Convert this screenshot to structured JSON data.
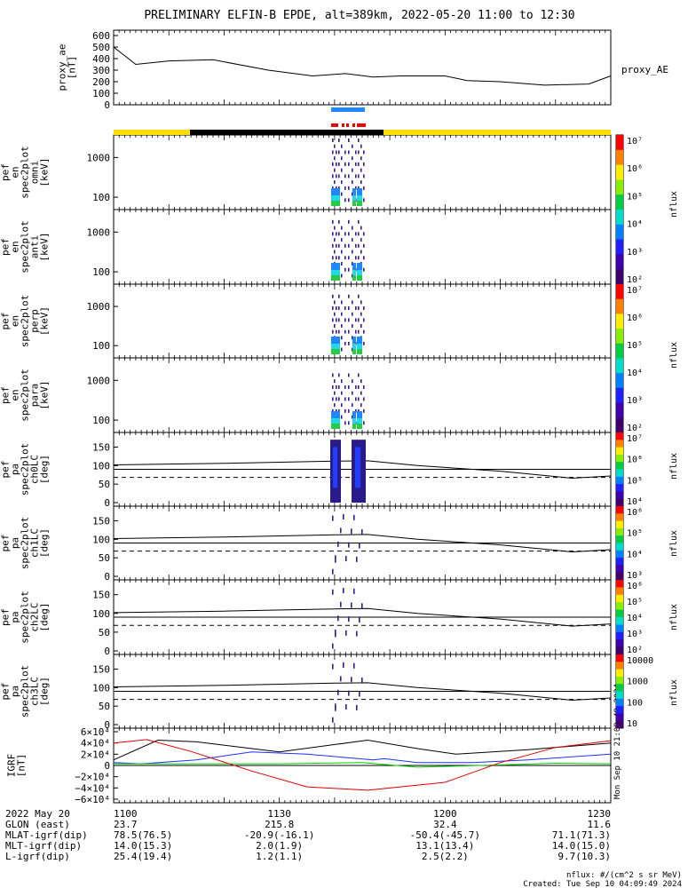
{
  "title": "PRELIMINARY ELFIN-B EPDE, alt=389km, 2022-05-20 11:00 to 12:30",
  "colors": {
    "state_yellow": "#ffdd00",
    "state_black": "#000000",
    "science_blue": "#1f88ff",
    "science_red": "#ee0000",
    "igrf_x": "#000000",
    "igrf_y": "#1f2fff",
    "igrf_z": "#00cc00",
    "igrf_red": "#dd0000"
  },
  "panels": [
    {
      "id": "proxy_ae",
      "ylabel": "proxy_ae\n[nT]",
      "right_label": "proxy_AE"
    },
    {
      "id": "omni",
      "ylabel": "elb\npef\nen\nspec2plot\nomni\n[keV]",
      "cbar_label": "nflux"
    },
    {
      "id": "anti",
      "ylabel": "elb\npef\nen\nspec2plot\nanti\n[keV]",
      "cbar_label": "nflux"
    },
    {
      "id": "perp",
      "ylabel": "elb\npef\nen\nspec2plot\nperp\n[keV]",
      "cbar_label": "nflux"
    },
    {
      "id": "para",
      "ylabel": "elb\npef\nen\nspec2plot\npara\n[keV]",
      "cbar_label": "nflux"
    },
    {
      "id": "ch0LC",
      "ylabel": "elb\npef\npa\nspec2plot\nch0LC\n[deg]",
      "cbar_label": "nflux"
    },
    {
      "id": "ch1LC",
      "ylabel": "elb\npef\npa\nspec2plot\nch1LC\n[deg]",
      "cbar_label": "nflux"
    },
    {
      "id": "ch2LC",
      "ylabel": "elb\npef\npa\nspec2plot\nch2LC\n[deg]",
      "cbar_label": "nflux"
    },
    {
      "id": "ch3LC",
      "ylabel": "elb\npef\npa\nspec2plot\nch3LC\n[deg]",
      "cbar_label": "nflux"
    },
    {
      "id": "igrf",
      "ylabel": "IGRF\n[nT]"
    }
  ],
  "chart_data": {
    "type": "line",
    "x_range": [
      "11:00",
      "12:30"
    ],
    "proxy_ae": {
      "ylim": [
        0,
        600
      ],
      "yticks": [
        "600",
        "500",
        "400",
        "300",
        "200",
        "100",
        "0"
      ],
      "x_min": [
        0,
        4,
        10,
        18,
        28,
        36,
        42,
        47,
        52,
        60,
        64,
        70,
        78,
        86,
        90
      ],
      "values": [
        500,
        350,
        380,
        390,
        300,
        250,
        270,
        240,
        250,
        250,
        210,
        200,
        170,
        180,
        250
      ]
    },
    "energy_ticks": [
      "1000",
      "100"
    ],
    "pitch_ticks": [
      "150",
      "100",
      "50",
      "0"
    ],
    "igrf_ticks": [
      "6×10⁴",
      "4×10⁴",
      "2×10⁴",
      "0",
      "−2×10⁴",
      "−4×10⁴",
      "−6×10⁴"
    ],
    "cb_energy_ticks": [
      "10⁷",
      "10⁶",
      "10⁵",
      "10⁴",
      "10³",
      "10²"
    ],
    "cb_ch0_ticks": [
      "10⁷",
      "10⁶",
      "10⁵",
      "10⁴"
    ],
    "cb_ch1_ticks": [
      "10⁶",
      "10⁵",
      "10⁴",
      "10³"
    ],
    "cb_ch2_ticks": [
      "10⁶",
      "10⁵",
      "10⁴",
      "10³",
      "10²"
    ],
    "cb_ch3_ticks": [
      "10000",
      "1000",
      "100",
      "10"
    ],
    "bottom_rows": [
      {
        "label": "2022 May 20",
        "values": [
          "1100",
          "1130",
          "1200",
          "1230"
        ]
      },
      {
        "label": "GLON (east)",
        "values": [
          "23.7",
          "215.8",
          "32.4",
          "11.6"
        ]
      },
      {
        "label": "MLAT-igrf(dip)",
        "values": [
          "78.5(76.5)",
          "-20.9(-16.1)",
          "-50.4(-45.7)",
          "71.1(71.3)"
        ]
      },
      {
        "label": "MLT-igrf(dip)",
        "values": [
          "14.0(15.3)",
          "2.0(1.9)",
          "13.1(13.4)",
          "14.0(15.0)"
        ]
      },
      {
        "label": "L-igrf(dip)",
        "values": [
          "25.4(19.4)",
          "1.2(1.1)",
          "2.5(2.2)",
          "9.7(10.3)"
        ]
      }
    ]
  },
  "footer": {
    "units": "nflux: #/(cm^2 s sr MeV)",
    "created": "Created: Tue Sep 10 04:09:49 2024",
    "side_stamp": "Mon Sep 10 21:09:49 2024"
  }
}
